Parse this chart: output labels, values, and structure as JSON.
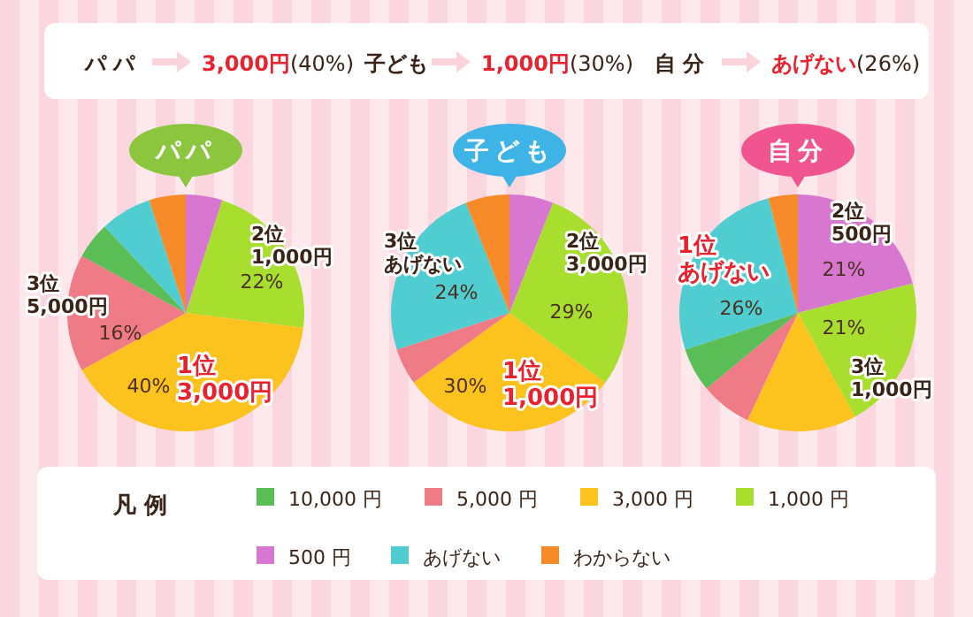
{
  "chart_data": [
    {
      "type": "pie",
      "title": "パパ",
      "categories": [
        "500 円",
        "1,000 円",
        "3,000 円",
        "5,000 円",
        "10,000 円",
        "あげない",
        "わからない"
      ],
      "values": [
        5,
        22,
        40,
        16,
        5,
        7,
        5
      ],
      "colors": [
        "#d877d0",
        "#a8de2e",
        "#fcc21e",
        "#ef7b86",
        "#5bbd56",
        "#4fcdd0",
        "#f78b2a"
      ],
      "value_labels": [
        null,
        "22%",
        "40%",
        "16%",
        null,
        null,
        null
      ],
      "annotations": [
        "パ パ",
        "3,000円",
        "(40%)",
        "1位3,000円",
        "2位1,000円",
        "3位5,000円"
      ],
      "legend": "bottom",
      "legend_title": "凡 例"
    },
    {
      "type": "pie",
      "title": "子ども",
      "categories": [
        null,
        null,
        null,
        null,
        null,
        null,
        null
      ],
      "values": [
        6,
        29,
        30,
        5,
        0,
        24,
        6
      ],
      "colors": [
        "#d877d0",
        "#a8de2e",
        "#fcc21e",
        "#ef7b86",
        "#5bbd56",
        "#4fcdd0",
        "#f78b2a"
      ],
      "value_labels": [
        null,
        "29%",
        "30%",
        null,
        null,
        "24%",
        null
      ],
      "annotations": [
        "子ども",
        "1,000円",
        "(30%)",
        "1位1,000円",
        "2位3,000円",
        "3位あげない"
      ]
    },
    {
      "type": "pie",
      "title": "自分",
      "categories": [
        null,
        null,
        null,
        null,
        null,
        null,
        null
      ],
      "values": [
        21,
        21,
        15,
        7,
        6,
        26,
        4
      ],
      "colors": [
        "#d877d0",
        "#a8de2e",
        "#fcc21e",
        "#ef7b86",
        "#5bbd56",
        "#4fcdd0",
        "#f78b2a"
      ],
      "value_labels": [
        "21%",
        "21%",
        null,
        null,
        null,
        "26%",
        null
      ],
      "annotations": [
        "自 分",
        "あげない",
        "(26%)",
        "1位あげない",
        "2位500円",
        "3位1,000円"
      ]
    }
  ]
}
